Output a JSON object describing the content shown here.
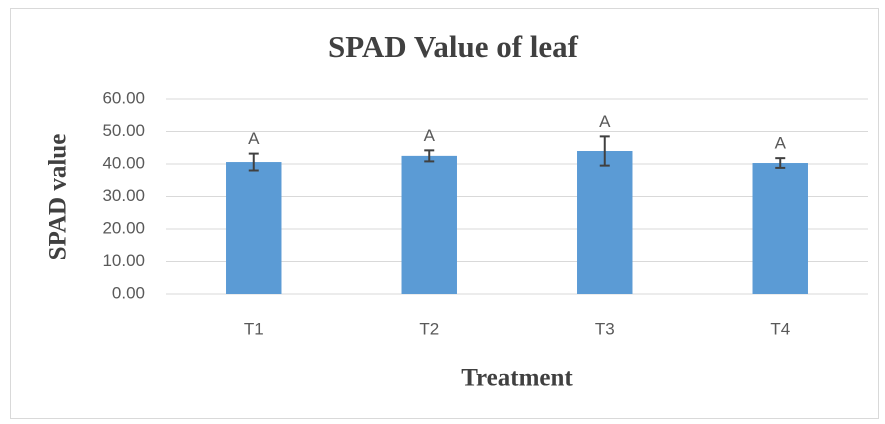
{
  "chart_data": {
    "type": "bar",
    "title": "SPAD Value of leaf",
    "x_label": "Treatment",
    "y_label": "SPAD value",
    "categories": [
      "T1",
      "T2",
      "T3",
      "T4"
    ],
    "values": [
      40.6,
      42.5,
      44.0,
      40.3
    ],
    "errors": [
      2.6,
      1.7,
      4.5,
      1.5
    ],
    "letters": [
      "A",
      "A",
      "A",
      "A"
    ],
    "color": "#5b9bd5",
    "error_color": "#404040",
    "ylim": [
      0,
      60
    ],
    "yticks": [
      {
        "value": 0,
        "label": "0.00"
      },
      {
        "value": 10,
        "label": "10.00"
      },
      {
        "value": 20,
        "label": "20.00"
      },
      {
        "value": 30,
        "label": "30.00"
      },
      {
        "value": 40,
        "label": "40.00"
      },
      {
        "value": 50,
        "label": "50.00"
      },
      {
        "value": 60,
        "label": "60.00"
      }
    ],
    "grid": true
  }
}
